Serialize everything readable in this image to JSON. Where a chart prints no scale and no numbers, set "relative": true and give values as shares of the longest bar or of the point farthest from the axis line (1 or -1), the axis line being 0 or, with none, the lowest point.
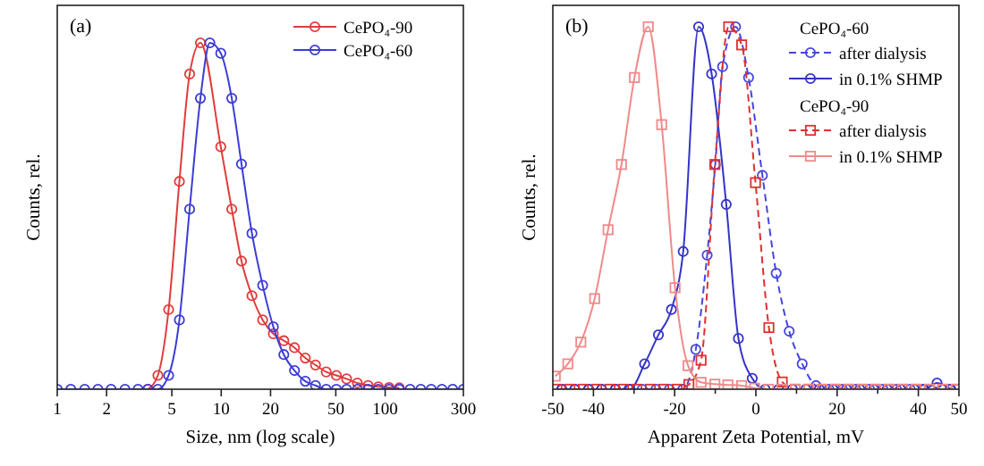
{
  "chart_data": [
    {
      "type": "line",
      "relative": true,
      "log": "x",
      "xlim": [
        1,
        300
      ],
      "xticks": [
        1,
        2,
        5,
        10,
        20,
        50,
        100,
        300
      ],
      "xlabel": "Size, nm (log scale)",
      "ylabel": "Counts, rel.",
      "annotations": [
        "(a)"
      ],
      "legend": "top right",
      "marker": "circle",
      "line_style": "solid",
      "series": [
        {
          "name": "CePO₄-90",
          "color": "#e03c3c",
          "x": [
            3.57,
            4.11,
            4.78,
            5.56,
            6.42,
            7.47,
            9.94,
            11.6,
            13.3,
            15.4,
            17.9,
            20.8,
            24.1,
            28.0,
            32.6,
            37.6,
            43.7,
            50.4,
            58.2,
            67.7,
            78.7,
            90.8,
            105.7,
            122
          ],
          "values": [
            0,
            0.04,
            0.23,
            0.6,
            0.91,
            1.0,
            0.7,
            0.52,
            0.37,
            0.27,
            0.2,
            0.16,
            0.14,
            0.12,
            0.09,
            0.07,
            0.05,
            0.04,
            0.03,
            0.018,
            0.011,
            0.007,
            0.005,
            0.004
          ]
        },
        {
          "name": "CePO₄-60",
          "color": "#3c3cd6",
          "x": [
            1,
            1.21,
            1.47,
            1.77,
            2.13,
            2.59,
            3.11,
            3.57,
            4.11,
            4.78,
            5.56,
            6.42,
            7.47,
            8.53,
            9.94,
            11.6,
            13.3,
            15.4,
            17.9,
            20.8,
            24.1,
            28.0,
            32.6,
            37.6,
            43.7,
            50.4,
            58.2,
            67.7,
            78.7,
            90.8,
            105.7,
            122,
            142,
            165,
            191,
            222,
            258,
            300
          ],
          "values": [
            0,
            0,
            0,
            0,
            0,
            0,
            0,
            0,
            0,
            0.04,
            0.2,
            0.52,
            0.84,
            1.0,
            0.97,
            0.84,
            0.65,
            0.45,
            0.3,
            0.18,
            0.1,
            0.054,
            0.023,
            0.011,
            0,
            0,
            0,
            0,
            0,
            0,
            0,
            0,
            0,
            0,
            0,
            0,
            0,
            0
          ]
        }
      ]
    },
    {
      "type": "line",
      "relative": true,
      "xlim": [
        -50,
        50
      ],
      "xticks": [
        -50,
        -40,
        {
          "value": -30,
          "label": null
        },
        -20,
        {
          "value": -10,
          "label": null
        },
        0,
        {
          "value": 10,
          "label": null
        },
        20,
        {
          "value": 30,
          "label": null
        },
        40,
        50
      ],
      "xlabel": "Apparent Zeta Potential, mV",
      "ylabel": "Counts, rel.",
      "annotations": [
        "(b)",
        "CePO₄-60",
        "CePO₄-90"
      ],
      "legend": "top right",
      "series": [
        {
          "name": "after dialysis",
          "color": "#4646e0",
          "marker": "circle",
          "line_style": "dashed",
          "x": [
            -47.8,
            -44.6,
            -41.2,
            -38,
            -34.6,
            -31.3,
            -28,
            -24.6,
            -21.3,
            -18,
            -14.8,
            -12.0,
            -10.0,
            -8.2,
            -5.0,
            -1.8,
            1.6,
            5.0,
            8.2,
            11.4,
            14.8,
            18,
            21.3,
            24.6,
            28,
            31.3,
            34.6,
            38,
            41.2,
            47.8
          ],
          "values": [
            0,
            0,
            0,
            0,
            0,
            0,
            0,
            0,
            0,
            0,
            0.11,
            0.37,
            0.62,
            0.89,
            1.0,
            0.86,
            0.59,
            0.32,
            0.16,
            0.07,
            0.01,
            0,
            0,
            0,
            0,
            0,
            0,
            0,
            0,
            0
          ]
        },
        {
          "name": "in 0.1% SHMP",
          "color": "#3434c8",
          "marker": "circle",
          "line_style": "solid",
          "x": [
            -47.8,
            -44.6,
            -41.2,
            -38,
            -34.6,
            -31,
            -27.4,
            -24.0,
            -20.8,
            -17.9,
            -14.1,
            -10.9,
            -7.3,
            -4.3,
            -0.9,
            2.3,
            5.6,
            9,
            12.3,
            15.6,
            19,
            22.3,
            25.6,
            29,
            32.3,
            35.6,
            39,
            41.5,
            44.6,
            48
          ],
          "values": [
            0,
            0,
            0,
            0,
            0,
            0,
            0.07,
            0.15,
            0.22,
            0.38,
            1.0,
            0.87,
            0.51,
            0.14,
            0.03,
            0,
            0,
            0,
            0,
            0,
            0,
            0,
            0,
            0,
            0,
            0,
            0,
            0,
            0.017,
            0
          ]
        },
        {
          "name": "after dialysis",
          "color": "#e03030",
          "marker": "square",
          "line_style": "dashed",
          "x": [
            -49,
            -45.8,
            -42.5,
            -39.2,
            -35.9,
            -32.6,
            -29.3,
            -26,
            -22.7,
            -19.4,
            -16.5,
            -13.5,
            -10.1,
            -6.7,
            -3.5,
            -0.1,
            3.2,
            6.5,
            9.7,
            13,
            16.3,
            19.6,
            22.9,
            26.2,
            29.5,
            32.8,
            36.1,
            39.4,
            42.7,
            46,
            49.3
          ],
          "values": [
            0,
            0,
            0,
            0,
            0,
            0,
            0,
            0,
            0,
            0,
            0.013,
            0.08,
            0.62,
            1.0,
            0.95,
            0.57,
            0.17,
            0.02,
            0,
            0,
            0,
            0,
            0,
            0,
            0,
            0,
            0,
            0,
            0,
            0,
            0
          ]
        },
        {
          "name": "in 0.1% SHMP",
          "color": "#f08a8a",
          "marker": "square",
          "line_style": "solid",
          "x": [
            -49.4,
            -46.3,
            -43.1,
            -39.7,
            -36.4,
            -33.1,
            -29.9,
            -26.5,
            -23.2,
            -19.9,
            -16.7,
            -13.5,
            -10.1,
            -6.9,
            -3.5,
            -0.3,
            3.1,
            6.4,
            9.7,
            13,
            16.3,
            19.6,
            22.9,
            26.2,
            29.5,
            32.8,
            36.1,
            39.4,
            42.7,
            46,
            49.3
          ],
          "values": [
            0.036,
            0.07,
            0.13,
            0.25,
            0.44,
            0.62,
            0.86,
            1.0,
            0.73,
            0.28,
            0.065,
            0.019,
            0.014,
            0.012,
            0.01,
            0.003,
            0,
            0,
            0,
            0,
            0,
            0,
            0,
            0,
            0,
            0,
            0,
            0,
            0,
            0,
            0
          ]
        }
      ]
    }
  ]
}
